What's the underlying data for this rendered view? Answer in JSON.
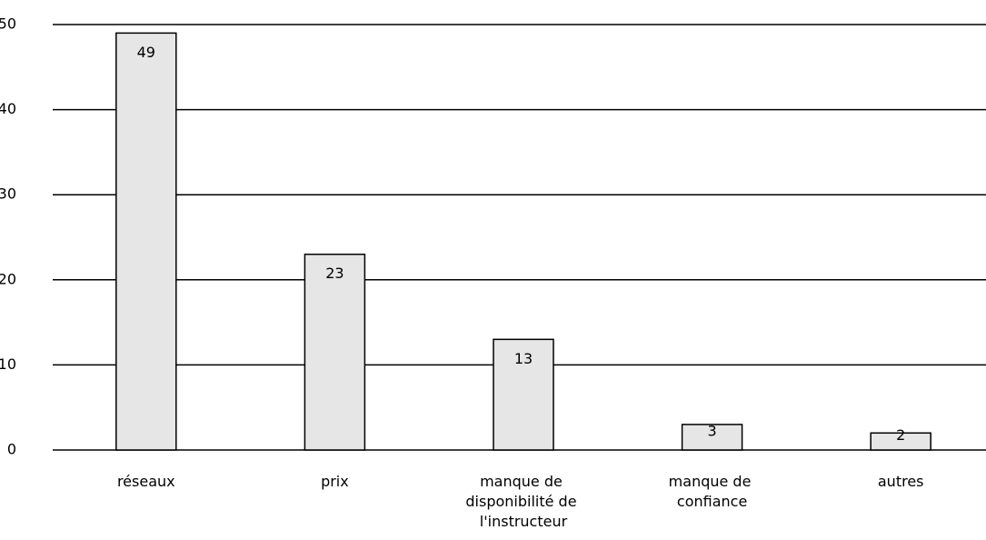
{
  "chart_data": {
    "type": "bar",
    "categories": [
      "réseaux",
      "prix",
      "manque de disponibilité de l'instructeur",
      "manque de confiance",
      "autres"
    ],
    "values": [
      49,
      23,
      13,
      3,
      2
    ],
    "color": "#e6e6e6",
    "ylim": [
      0,
      50
    ],
    "yticks": [
      0,
      10,
      20,
      30,
      40,
      50
    ],
    "grid": true
  }
}
